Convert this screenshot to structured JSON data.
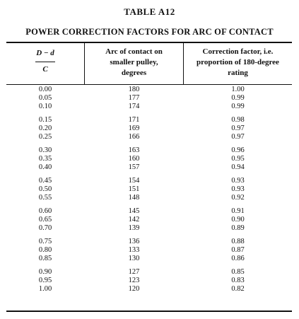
{
  "table": {
    "number": "TABLE A12",
    "title": "POWER CORRECTION FACTORS FOR ARC OF CONTACT",
    "headers": {
      "ratio_numerator": "D − d",
      "ratio_denominator": "C",
      "arc": [
        "Arc of contact on",
        "smaller pulley,",
        "degrees"
      ],
      "factor": [
        "Correction factor, i.e.",
        "proportion of 180-degree",
        "rating"
      ]
    },
    "groups": [
      [
        [
          "0.00",
          "180",
          "1.00"
        ],
        [
          "0.05",
          "177",
          "0.99"
        ],
        [
          "0.10",
          "174",
          "0.99"
        ]
      ],
      [
        [
          "0.15",
          "171",
          "0.98"
        ],
        [
          "0.20",
          "169",
          "0.97"
        ],
        [
          "0.25",
          "166",
          "0.97"
        ]
      ],
      [
        [
          "0.30",
          "163",
          "0.96"
        ],
        [
          "0.35",
          "160",
          "0.95"
        ],
        [
          "0.40",
          "157",
          "0.94"
        ]
      ],
      [
        [
          "0.45",
          "154",
          "0.93"
        ],
        [
          "0.50",
          "151",
          "0.93"
        ],
        [
          "0.55",
          "148",
          "0.92"
        ]
      ],
      [
        [
          "0.60",
          "145",
          "0.91"
        ],
        [
          "0.65",
          "142",
          "0.90"
        ],
        [
          "0.70",
          "139",
          "0.89"
        ]
      ],
      [
        [
          "0.75",
          "136",
          "0.88"
        ],
        [
          "0.80",
          "133",
          "0.87"
        ],
        [
          "0.85",
          "130",
          "0.86"
        ]
      ],
      [
        [
          "0.90",
          "127",
          "0.85"
        ],
        [
          "0.95",
          "123",
          "0.83"
        ],
        [
          "1.00",
          "120",
          "0.82"
        ]
      ]
    ]
  }
}
